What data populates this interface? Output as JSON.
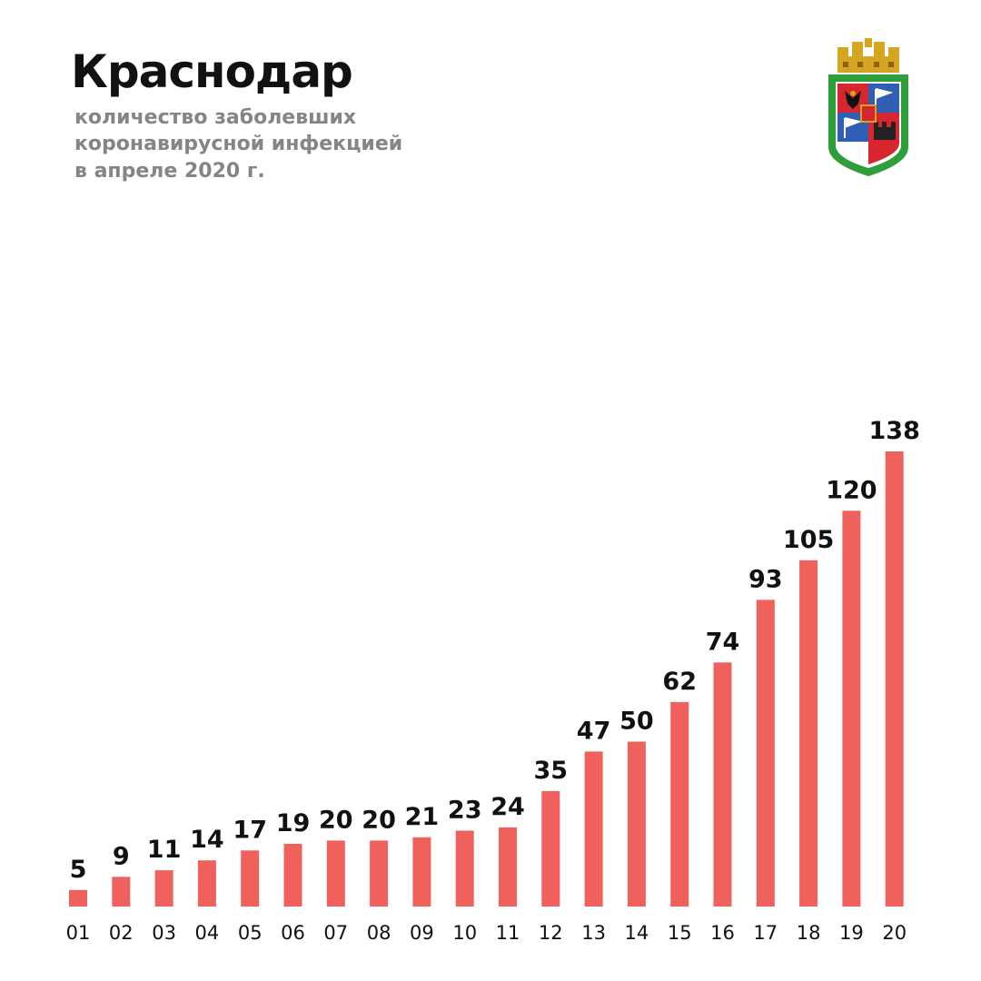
{
  "header": {
    "title": "Краснодар",
    "subtitle_lines": [
      "количество заболевших",
      "коронавирусной инфекцией",
      "в апреле 2020 г."
    ]
  },
  "emblem": {
    "icon": "krasnodar-coat-of-arms-icon",
    "colors": {
      "crown": "#d4a520",
      "frame": "#2e9e3a",
      "field_red": "#d7262f",
      "field_blue": "#2f5fb5",
      "field_white": "#ffffff"
    }
  },
  "chart_data": {
    "type": "bar",
    "categories": [
      "01",
      "02",
      "03",
      "04",
      "05",
      "06",
      "07",
      "08",
      "09",
      "10",
      "11",
      "12",
      "13",
      "14",
      "15",
      "16",
      "17",
      "18",
      "19",
      "20"
    ],
    "values": [
      5,
      9,
      11,
      14,
      17,
      19,
      20,
      20,
      21,
      23,
      24,
      35,
      47,
      50,
      62,
      74,
      93,
      105,
      120,
      138
    ],
    "value_labels_shown": true,
    "grid": false,
    "legend": "none",
    "ylim": [
      0,
      138
    ],
    "colors": {
      "bar": "#f0615d",
      "value_label": "#111111",
      "tick_label": "#111111"
    }
  }
}
